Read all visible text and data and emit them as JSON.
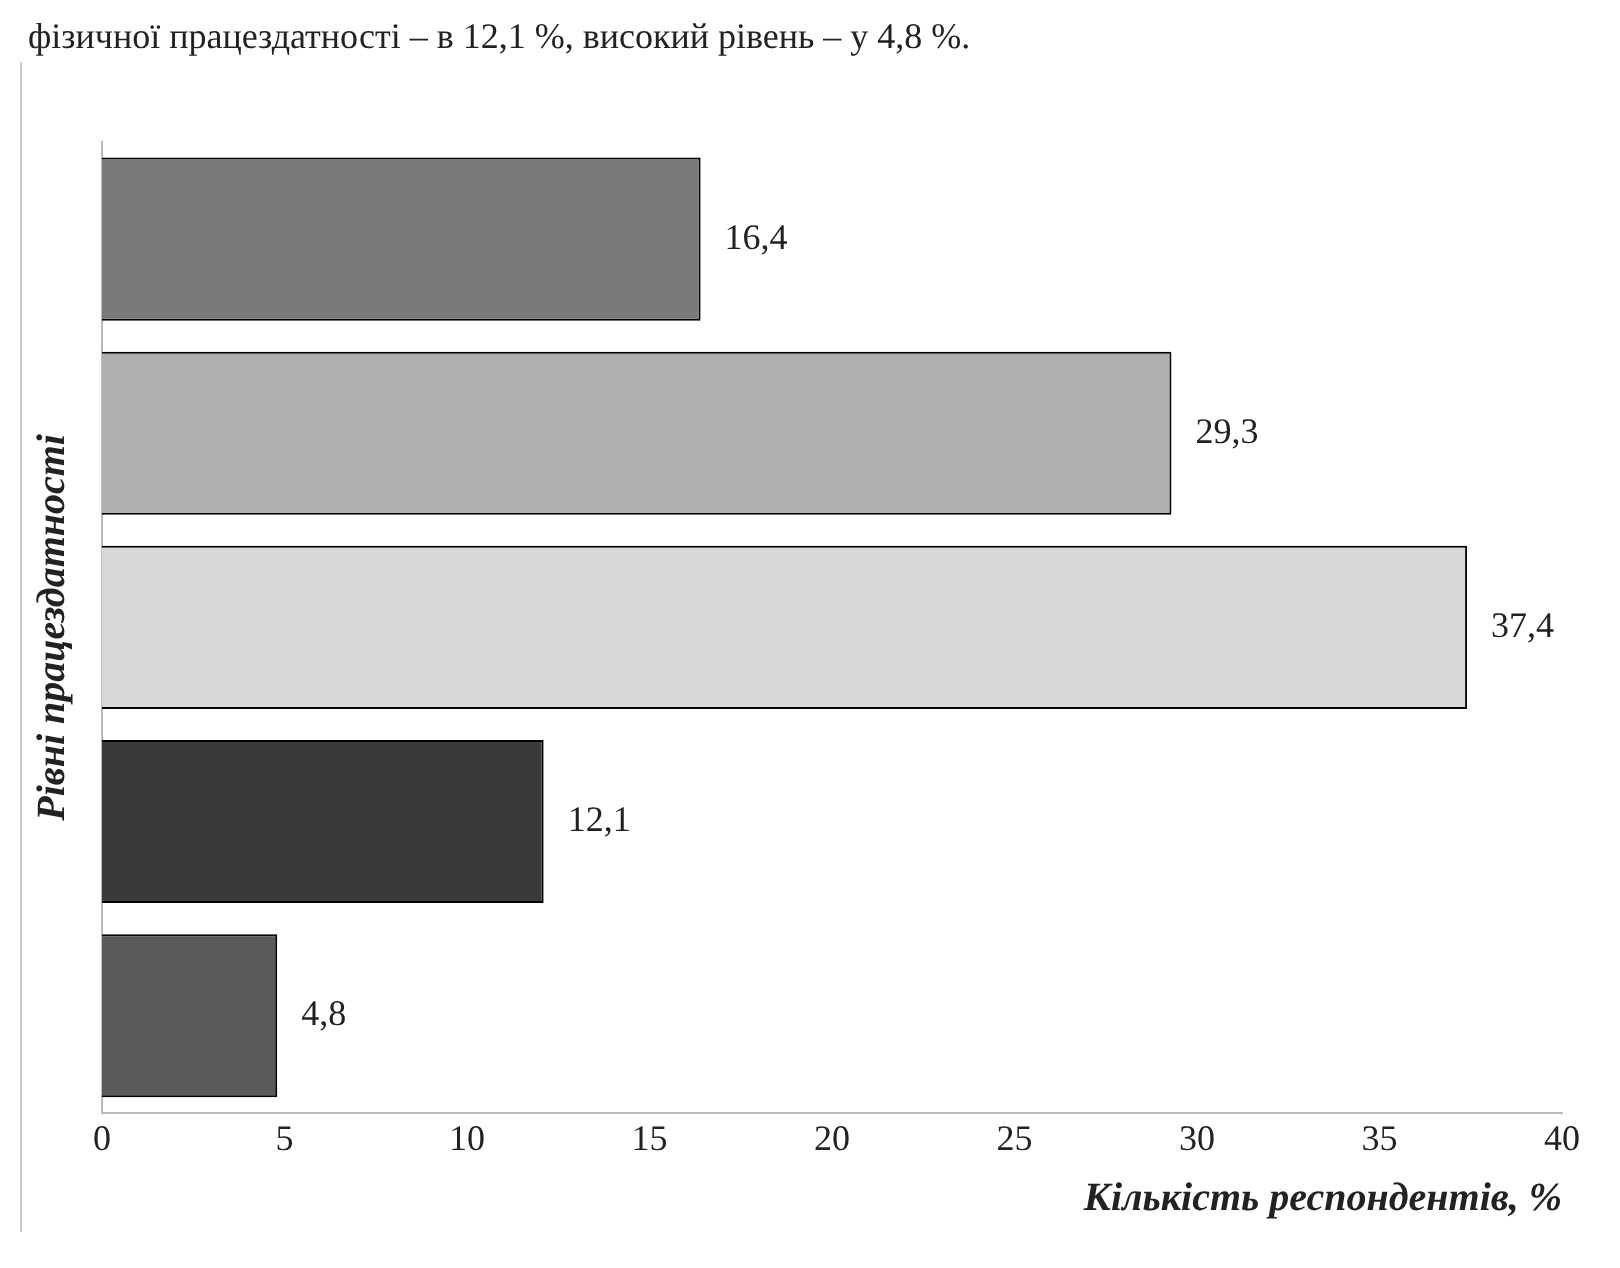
{
  "chart_data": {
    "type": "bar",
    "orientation": "horizontal",
    "annotations": [
      "фізичної працездатності – в 12,1 %, високий рівень – у 4,8 %."
    ],
    "xlabel": "Кількість респондентів, %",
    "ylabel": "Рівні працездатності",
    "categories": [
      null,
      null,
      null,
      null,
      null
    ],
    "values": [
      16.4,
      29.3,
      37.4,
      12.1,
      4.8
    ],
    "colors": [
      "#7a7a7a",
      "#b0b0b0",
      "#d8d8d8",
      "#3a3a3a",
      "#5a5a5a"
    ],
    "value_labels": [
      "16,4",
      "29,3",
      "37,4",
      "12,1",
      "4,8"
    ],
    "xlim": [
      0,
      40
    ],
    "xticks": [
      0,
      5,
      10,
      15,
      20,
      25,
      30,
      35,
      40
    ],
    "grid": false,
    "legend": false
  }
}
